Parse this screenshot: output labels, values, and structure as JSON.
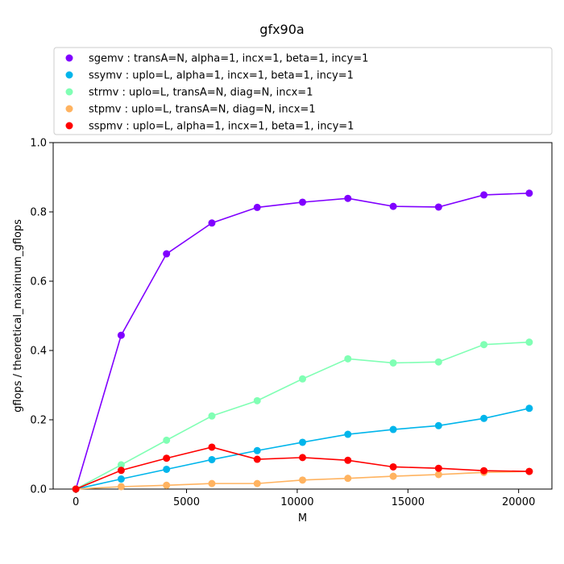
{
  "chart_data": {
    "type": "line",
    "title": "gfx90a",
    "xlabel": "M",
    "ylabel": "gflops / theoretical_maximum_gflops",
    "xlim": [
      -1024,
      21504
    ],
    "ylim": [
      0,
      1.0
    ],
    "xticks": [
      0,
      5000,
      10000,
      15000,
      20000
    ],
    "yticks": [
      0.0,
      0.2,
      0.4,
      0.6,
      0.8,
      1.0
    ],
    "xtick_labels": [
      "0",
      "5000",
      "10000",
      "15000",
      "20000"
    ],
    "ytick_labels": [
      "0.0",
      "0.2",
      "0.4",
      "0.6",
      "0.8",
      "1.0"
    ],
    "grid": false,
    "legend_position": "top",
    "x": [
      0,
      2048,
      4096,
      6144,
      8192,
      10240,
      12288,
      14336,
      16384,
      18432,
      20480
    ],
    "series": [
      {
        "name": "sgemv :  transA=N, alpha=1, incx=1, beta=1, incy=1",
        "color": "#8000ff",
        "values": [
          0.0,
          0.444,
          0.679,
          0.768,
          0.813,
          0.828,
          0.839,
          0.816,
          0.814,
          0.849,
          0.854
        ]
      },
      {
        "name": "ssymv :  uplo=L, alpha=1, incx=1, beta=1, incy=1",
        "color": "#00b5eb",
        "values": [
          0.0,
          0.029,
          0.057,
          0.085,
          0.111,
          0.135,
          0.158,
          0.172,
          0.183,
          0.204,
          0.233
        ]
      },
      {
        "name": "strmv :  uplo=L, transA=N, diag=N, incx=1",
        "color": "#80ffb4",
        "values": [
          0.0,
          0.07,
          0.141,
          0.211,
          0.255,
          0.318,
          0.376,
          0.364,
          0.367,
          0.417,
          0.424
        ]
      },
      {
        "name": "stpmv :  uplo=L, transA=N, diag=N, incx=1",
        "color": "#ffb360",
        "values": [
          0.0,
          0.007,
          0.011,
          0.016,
          0.016,
          0.026,
          0.031,
          0.037,
          0.042,
          0.048,
          0.051
        ]
      },
      {
        "name": "sspmv :  uplo=L, alpha=1, incx=1, beta=1, incy=1",
        "color": "#ff0000",
        "values": [
          0.0,
          0.054,
          0.089,
          0.121,
          0.086,
          0.091,
          0.083,
          0.064,
          0.06,
          0.053,
          0.051
        ]
      }
    ]
  }
}
